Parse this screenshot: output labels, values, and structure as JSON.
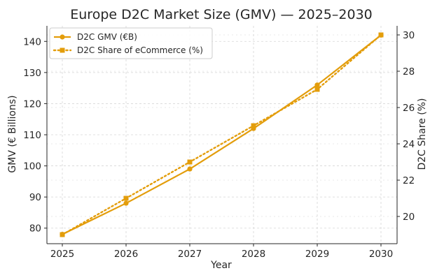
{
  "chart_data": {
    "type": "line",
    "title": "Europe D2C Market Size (GMV) — 2025–2030",
    "xlabel": "Year",
    "ylabel": "GMV (€ Billions)",
    "y2label": "D2C Share (%)",
    "categories": [
      "2025",
      "2026",
      "2027",
      "2028",
      "2029",
      "2030"
    ],
    "ylim": [
      75,
      145
    ],
    "y_ticks": [
      80,
      90,
      100,
      110,
      120,
      130,
      140
    ],
    "y2lim": [
      18.5,
      30.5
    ],
    "y2_ticks": [
      20,
      22,
      24,
      26,
      28,
      30
    ],
    "grid": true,
    "legend_position": "top-left",
    "series": [
      {
        "name": "D2C GMV (€B)",
        "axis": "left",
        "style": "solid",
        "marker": "circle",
        "values": [
          78,
          88,
          99,
          112,
          126,
          142
        ]
      },
      {
        "name": "D2C Share of eCommerce (%)",
        "axis": "right",
        "style": "dotted",
        "marker": "square",
        "values": [
          19,
          21,
          23,
          25,
          27,
          30
        ]
      }
    ],
    "colors": {
      "line": "#E39D0B",
      "text": "#262626",
      "grid": "#d6d6d6",
      "axis": "#262626"
    }
  }
}
